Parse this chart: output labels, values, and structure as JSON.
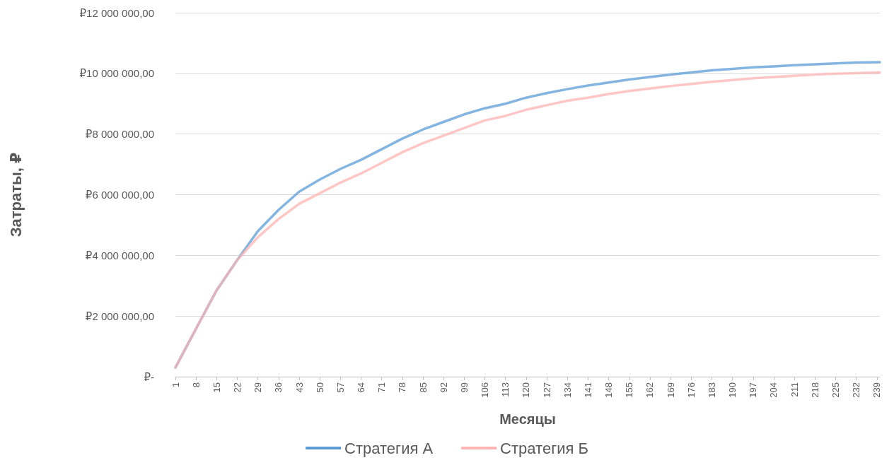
{
  "chart_data": {
    "type": "line",
    "xlabel": "Месяцы",
    "ylabel": "Затраты, ₽",
    "x": [
      1,
      8,
      15,
      22,
      29,
      36,
      43,
      50,
      57,
      64,
      71,
      78,
      85,
      92,
      99,
      106,
      113,
      120,
      127,
      134,
      141,
      148,
      155,
      162,
      169,
      176,
      183,
      190,
      197,
      204,
      211,
      218,
      225,
      232,
      240
    ],
    "series": [
      {
        "name": "Стратегия А",
        "color": "#5b9bd5",
        "values": [
          300000,
          1580000,
          2850000,
          3850000,
          4800000,
          5500000,
          6100000,
          6500000,
          6850000,
          7150000,
          7500000,
          7850000,
          8150000,
          8400000,
          8650000,
          8850000,
          9000000,
          9200000,
          9350000,
          9480000,
          9600000,
          9700000,
          9800000,
          9880000,
          9960000,
          10030000,
          10100000,
          10150000,
          10200000,
          10230000,
          10270000,
          10300000,
          10330000,
          10360000,
          10370000
        ]
      },
      {
        "name": "Стратегия Б",
        "color": "#ffb3b3",
        "values": [
          300000,
          1580000,
          2850000,
          3850000,
          4600000,
          5200000,
          5700000,
          6050000,
          6400000,
          6700000,
          7050000,
          7400000,
          7700000,
          7950000,
          8200000,
          8450000,
          8600000,
          8800000,
          8950000,
          9100000,
          9200000,
          9320000,
          9420000,
          9500000,
          9580000,
          9650000,
          9720000,
          9780000,
          9840000,
          9880000,
          9920000,
          9960000,
          9990000,
          10010000,
          10030000
        ]
      }
    ],
    "xlim": [
      1,
      240
    ],
    "xticks": [
      1,
      8,
      15,
      22,
      29,
      36,
      43,
      50,
      57,
      64,
      71,
      78,
      85,
      92,
      99,
      106,
      113,
      120,
      127,
      134,
      141,
      148,
      155,
      162,
      169,
      176,
      183,
      190,
      197,
      204,
      211,
      218,
      225,
      232,
      239
    ],
    "ylim": [
      0,
      12000000
    ],
    "yticks": [
      {
        "value": 0,
        "label": "₽-"
      },
      {
        "value": 2000000,
        "label": "₽2 000 000,00"
      },
      {
        "value": 4000000,
        "label": "₽4 000 000,00"
      },
      {
        "value": 6000000,
        "label": "₽6 000 000,00"
      },
      {
        "value": 8000000,
        "label": "₽8 000 000,00"
      },
      {
        "value": 10000000,
        "label": "₽10 000 000,00"
      },
      {
        "value": 12000000,
        "label": "₽12 000 000,00"
      }
    ],
    "grid": "y",
    "legend": "bottom",
    "marker": "none",
    "line_style": "solid"
  }
}
